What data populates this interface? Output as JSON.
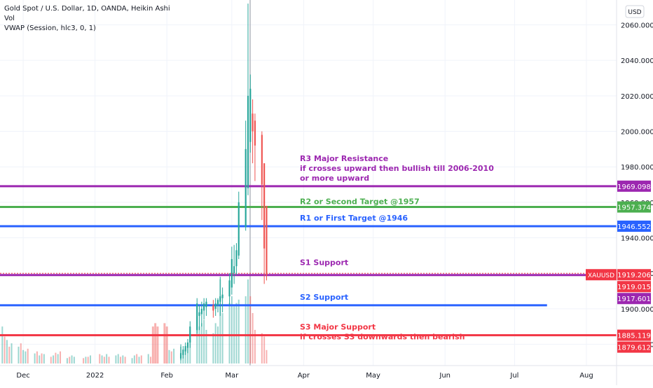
{
  "legend": {
    "symbol": "Gold Spot / U.S. Dollar, 1D, OANDA, Heikin Ashi",
    "volume": "Vol",
    "vwap": "VWAP (Session, hlc3, 0, 1)"
  },
  "currency_button": "USD",
  "colors": {
    "up": "#26a69a",
    "down": "#ef5350",
    "grid": "#f0f3fa",
    "text": "#131722",
    "purple": "#9c27b0",
    "green": "#4caf50",
    "blue": "#2962ff",
    "red": "#f23645",
    "axis_text": "#131722"
  },
  "chart_data": {
    "type": "candlestick",
    "title": "Gold Spot / U.S. Dollar, 1D, OANDA, Heikin Ashi",
    "y_axis": {
      "ticks": [
        1880,
        1900,
        1920,
        1940,
        1960,
        1980,
        2000,
        2020,
        2040,
        2060
      ],
      "tick_labels": [
        "1880.000",
        "1900.000",
        "1920.000",
        "1940.000",
        "1960.000",
        "1980.000",
        "2000.000",
        "2020.000",
        "2040.000",
        "2060.000"
      ],
      "range": [
        1868,
        2074
      ]
    },
    "x_axis": {
      "labels": [
        "Dec",
        "2022",
        "Feb",
        "Mar",
        "Apr",
        "May",
        "Jun",
        "Jul",
        "Aug"
      ],
      "label_dates": [
        "2021-12-01",
        "2022-01-01",
        "2022-02-01",
        "2022-03-01",
        "2022-04-01",
        "2022-05-01",
        "2022-06-01",
        "2022-07-01",
        "2022-08-01"
      ],
      "range": [
        "2021-11-21",
        "2022-08-14"
      ]
    },
    "levels": [
      {
        "label": "R3 Major Resistance",
        "value": 1969.098,
        "color": "purple",
        "note_lines": [
          "R3 Major Resistance",
          "if crosses upward then bullish till 2006-2010",
          "or more upward"
        ],
        "end": "2022-08-14"
      },
      {
        "label": "R2 or Second Target @1957",
        "value": 1957.374,
        "color": "green",
        "note_lines": [
          "R2 or Second Target @1957"
        ],
        "end": "2022-08-14"
      },
      {
        "label": "R1 or First Target @1946",
        "value": 1946.552,
        "color": "blue",
        "note_lines": [
          "R1 or First Target @1946"
        ],
        "end": "2022-08-14"
      },
      {
        "label": "S1 Support",
        "value": 1919.015,
        "color": "purple",
        "note_lines": [
          "S1 Support"
        ],
        "end": "2022-08-14"
      },
      {
        "label": "S2 Support",
        "value": 1902.0,
        "color": "blue",
        "note_lines": [
          "S2 Support"
        ],
        "end": "2022-07-15"
      },
      {
        "label": "S3 Major Support",
        "value": 1885.119,
        "color": "red",
        "note_lines": [
          "S3 Major Support",
          "if crosses S3 downwards then bearish"
        ],
        "end": "2022-08-14"
      }
    ],
    "price_tags": [
      {
        "value": 1969.098,
        "text": "1969.098",
        "color": "purple"
      },
      {
        "value": 1957.374,
        "text": "1957.374",
        "color": "green"
      },
      {
        "value": 1946.552,
        "text": "1946.552",
        "color": "blue"
      },
      {
        "value": 1919.206,
        "text": "1919.206",
        "color": "red",
        "symbol": "XAUUSD"
      },
      {
        "value": 1919.015,
        "text": "1919.015",
        "color": "red"
      },
      {
        "value": 1917.601,
        "text": "1917.601",
        "color": "purple"
      },
      {
        "value": 1885.119,
        "text": "1885.119",
        "color": "red"
      },
      {
        "value": 1879.612,
        "text": "1879.612",
        "color": "red"
      }
    ],
    "current_price": 1919.206,
    "candles": [
      {
        "date": "2022-02-07",
        "open": 1872,
        "high": 1880,
        "low": 1871,
        "close": 1875
      },
      {
        "date": "2022-02-08",
        "open": 1874,
        "high": 1879,
        "low": 1872,
        "close": 1877
      },
      {
        "date": "2022-02-09",
        "open": 1876,
        "high": 1881,
        "low": 1874,
        "close": 1879
      },
      {
        "date": "2022-02-10",
        "open": 1878,
        "high": 1883,
        "low": 1875,
        "close": 1881
      },
      {
        "date": "2022-02-11",
        "open": 1881,
        "high": 1893,
        "low": 1878,
        "close": 1890
      },
      {
        "date": "2022-02-14",
        "open": 1888,
        "high": 1906,
        "low": 1886,
        "close": 1903
      },
      {
        "date": "2022-02-15",
        "open": 1896,
        "high": 1902,
        "low": 1888,
        "close": 1898
      },
      {
        "date": "2022-02-16",
        "open": 1897,
        "high": 1904,
        "low": 1890,
        "close": 1900
      },
      {
        "date": "2022-02-17",
        "open": 1899,
        "high": 1906,
        "low": 1894,
        "close": 1903
      },
      {
        "date": "2022-02-18",
        "open": 1901,
        "high": 1906,
        "low": 1896,
        "close": 1904
      },
      {
        "date": "2022-02-21",
        "open": 1902,
        "high": 1905,
        "low": 1895,
        "close": 1899
      },
      {
        "date": "2022-02-22",
        "open": 1900,
        "high": 1906,
        "low": 1896,
        "close": 1903
      },
      {
        "date": "2022-02-23",
        "open": 1902,
        "high": 1906,
        "low": 1898,
        "close": 1905
      },
      {
        "date": "2022-02-24",
        "open": 1904,
        "high": 1918,
        "low": 1896,
        "close": 1907
      },
      {
        "date": "2022-02-25",
        "open": 1906,
        "high": 1912,
        "low": 1898,
        "close": 1908
      },
      {
        "date": "2022-02-28",
        "open": 1907,
        "high": 1920,
        "low": 1902,
        "close": 1916
      },
      {
        "date": "2022-03-01",
        "open": 1912,
        "high": 1935,
        "low": 1908,
        "close": 1928
      },
      {
        "date": "2022-03-02",
        "open": 1920,
        "high": 1936,
        "low": 1914,
        "close": 1924
      },
      {
        "date": "2022-03-03",
        "open": 1924,
        "high": 1937,
        "low": 1919,
        "close": 1933
      },
      {
        "date": "2022-03-04",
        "open": 1930,
        "high": 1966,
        "low": 1928,
        "close": 1960
      },
      {
        "date": "2022-03-07",
        "open": 1946,
        "high": 2006,
        "low": 1944,
        "close": 1990
      },
      {
        "date": "2022-03-08",
        "open": 1968,
        "high": 2072,
        "low": 1964,
        "close": 2020
      },
      {
        "date": "2022-03-09",
        "open": 1994,
        "high": 2032,
        "low": 1988,
        "close": 2024
      },
      {
        "date": "2022-03-10",
        "open": 2010,
        "high": 2018,
        "low": 1982,
        "close": 2000
      },
      {
        "date": "2022-03-11",
        "open": 2006,
        "high": 2010,
        "low": 1972,
        "close": 1992
      },
      {
        "date": "2022-03-14",
        "open": 1998,
        "high": 2000,
        "low": 1950,
        "close": 1970
      },
      {
        "date": "2022-03-15",
        "open": 1982,
        "high": 1982,
        "low": 1914,
        "close": 1934
      },
      {
        "date": "2022-03-16",
        "open": 1958,
        "high": 1958,
        "low": 1916,
        "close": 1919
      }
    ],
    "volume": [
      {
        "date": "2021-11-22",
        "value": 0.55,
        "up": true
      },
      {
        "date": "2021-11-23",
        "value": 0.4,
        "up": false
      },
      {
        "date": "2021-11-24",
        "value": 0.35,
        "up": true
      },
      {
        "date": "2021-11-25",
        "value": 0.25,
        "up": false
      },
      {
        "date": "2021-11-26",
        "value": 0.3,
        "up": true
      },
      {
        "date": "2021-11-29",
        "value": 0.25,
        "up": true
      },
      {
        "date": "2021-11-30",
        "value": 0.3,
        "up": false
      },
      {
        "date": "2021-12-01",
        "value": 0.2,
        "up": true
      },
      {
        "date": "2021-12-02",
        "value": 0.18,
        "up": true
      },
      {
        "date": "2021-12-03",
        "value": 0.22,
        "up": false
      },
      {
        "date": "2021-12-06",
        "value": 0.15,
        "up": true
      },
      {
        "date": "2021-12-07",
        "value": 0.18,
        "up": false
      },
      {
        "date": "2021-12-08",
        "value": 0.12,
        "up": true
      },
      {
        "date": "2021-12-09",
        "value": 0.15,
        "up": false
      },
      {
        "date": "2021-12-10",
        "value": 0.14,
        "up": true
      },
      {
        "date": "2021-12-13",
        "value": 0.1,
        "up": false
      },
      {
        "date": "2021-12-14",
        "value": 0.12,
        "up": true
      },
      {
        "date": "2021-12-15",
        "value": 0.16,
        "up": false
      },
      {
        "date": "2021-12-16",
        "value": 0.14,
        "up": true
      },
      {
        "date": "2021-12-17",
        "value": 0.18,
        "up": false
      },
      {
        "date": "2021-12-20",
        "value": 0.08,
        "up": true
      },
      {
        "date": "2021-12-21",
        "value": 0.1,
        "up": false
      },
      {
        "date": "2021-12-22",
        "value": 0.12,
        "up": true
      },
      {
        "date": "2021-12-23",
        "value": 0.1,
        "up": true
      },
      {
        "date": "2021-12-27",
        "value": 0.08,
        "up": false
      },
      {
        "date": "2021-12-28",
        "value": 0.1,
        "up": true
      },
      {
        "date": "2021-12-29",
        "value": 0.1,
        "up": false
      },
      {
        "date": "2021-12-30",
        "value": 0.12,
        "up": true
      },
      {
        "date": "2022-01-03",
        "value": 0.14,
        "up": false
      },
      {
        "date": "2022-01-04",
        "value": 0.12,
        "up": true
      },
      {
        "date": "2022-01-05",
        "value": 0.1,
        "up": false
      },
      {
        "date": "2022-01-06",
        "value": 0.14,
        "up": true
      },
      {
        "date": "2022-01-07",
        "value": 0.1,
        "up": false
      },
      {
        "date": "2022-01-10",
        "value": 0.12,
        "up": true
      },
      {
        "date": "2022-01-11",
        "value": 0.14,
        "up": true
      },
      {
        "date": "2022-01-12",
        "value": 0.1,
        "up": false
      },
      {
        "date": "2022-01-13",
        "value": 0.12,
        "up": true
      },
      {
        "date": "2022-01-14",
        "value": 0.1,
        "up": false
      },
      {
        "date": "2022-01-17",
        "value": 0.08,
        "up": true
      },
      {
        "date": "2022-01-18",
        "value": 0.12,
        "up": true
      },
      {
        "date": "2022-01-19",
        "value": 0.14,
        "up": false
      },
      {
        "date": "2022-01-20",
        "value": 0.1,
        "up": true
      },
      {
        "date": "2022-01-21",
        "value": 0.12,
        "up": false
      },
      {
        "date": "2022-01-24",
        "value": 0.14,
        "up": true
      },
      {
        "date": "2022-01-25",
        "value": 0.1,
        "up": false
      },
      {
        "date": "2022-01-26",
        "value": 0.55,
        "up": false
      },
      {
        "date": "2022-01-27",
        "value": 0.6,
        "up": false
      },
      {
        "date": "2022-01-28",
        "value": 0.55,
        "up": false
      },
      {
        "date": "2022-01-31",
        "value": 0.6,
        "up": false
      },
      {
        "date": "2022-02-01",
        "value": 0.55,
        "up": false
      },
      {
        "date": "2022-02-02",
        "value": 0.2,
        "up": true
      },
      {
        "date": "2022-02-03",
        "value": 0.18,
        "up": false
      },
      {
        "date": "2022-02-04",
        "value": 0.22,
        "up": true
      },
      {
        "date": "2022-02-07",
        "value": 0.25,
        "up": true
      },
      {
        "date": "2022-02-08",
        "value": 0.2,
        "up": true
      },
      {
        "date": "2022-02-09",
        "value": 0.22,
        "up": true
      },
      {
        "date": "2022-02-10",
        "value": 0.28,
        "up": true
      },
      {
        "date": "2022-02-11",
        "value": 0.5,
        "up": true
      },
      {
        "date": "2022-02-14",
        "value": 0.7,
        "up": true
      },
      {
        "date": "2022-02-15",
        "value": 0.55,
        "up": true
      },
      {
        "date": "2022-02-16",
        "value": 0.6,
        "up": true
      },
      {
        "date": "2022-02-17",
        "value": 0.65,
        "up": true
      },
      {
        "date": "2022-02-18",
        "value": 0.5,
        "up": true
      },
      {
        "date": "2022-02-21",
        "value": 0.45,
        "up": true
      },
      {
        "date": "2022-02-22",
        "value": 0.6,
        "up": true
      },
      {
        "date": "2022-02-23",
        "value": 0.55,
        "up": true
      },
      {
        "date": "2022-02-24",
        "value": 1.25,
        "up": true
      },
      {
        "date": "2022-02-25",
        "value": 0.75,
        "up": true
      },
      {
        "date": "2022-02-28",
        "value": 0.9,
        "up": true
      },
      {
        "date": "2022-03-01",
        "value": 1.0,
        "up": true
      },
      {
        "date": "2022-03-02",
        "value": 0.85,
        "up": true
      },
      {
        "date": "2022-03-03",
        "value": 0.9,
        "up": true
      },
      {
        "date": "2022-03-04",
        "value": 0.95,
        "up": true
      },
      {
        "date": "2022-03-07",
        "value": 1.0,
        "up": true
      },
      {
        "date": "2022-03-08",
        "value": 1.25,
        "up": true
      },
      {
        "date": "2022-03-09",
        "value": 1.0,
        "up": false
      },
      {
        "date": "2022-03-10",
        "value": 0.75,
        "up": false
      },
      {
        "date": "2022-03-11",
        "value": 0.5,
        "up": false
      },
      {
        "date": "2022-03-14",
        "value": 0.45,
        "up": false
      },
      {
        "date": "2022-03-15",
        "value": 0.4,
        "up": false
      },
      {
        "date": "2022-03-16",
        "value": 0.2,
        "up": false
      }
    ]
  }
}
